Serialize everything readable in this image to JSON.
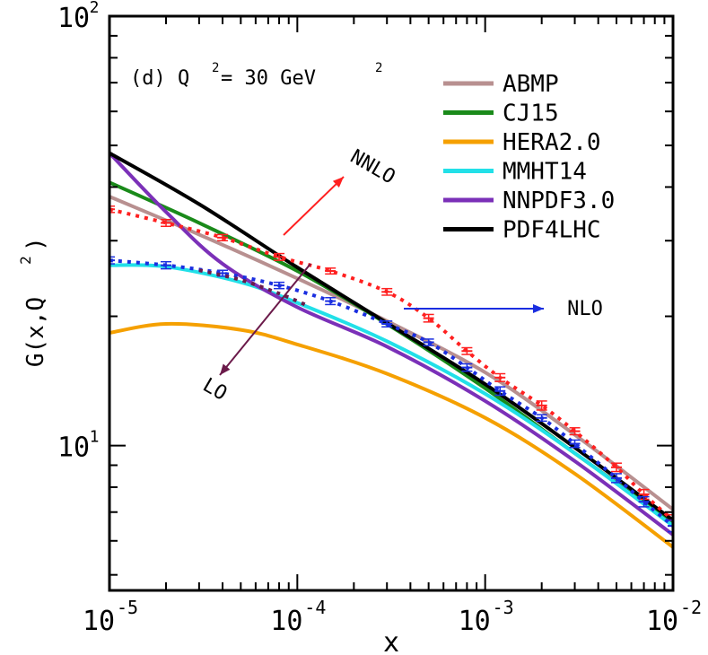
{
  "chart_data": {
    "type": "line",
    "title": "",
    "panel_label": "(d) Q",
    "panel_label_sup": "2",
    "panel_label_rest": " = 30 GeV",
    "panel_label_sup2": "2",
    "xlabel": "x",
    "ylabel_main": "G(x,Q",
    "ylabel_sup": "2",
    "ylabel_end": ")",
    "x_scale": "log",
    "y_scale": "log",
    "xlim": [
      1e-05,
      0.01
    ],
    "ylim": [
      4.6,
      100
    ],
    "x_ticks": [
      {
        "base": "10",
        "exp": "-5"
      },
      {
        "base": "10",
        "exp": "-4"
      },
      {
        "base": "10",
        "exp": "-3"
      },
      {
        "base": "10",
        "exp": "-2"
      }
    ],
    "y_ticks": [
      {
        "base": "10",
        "exp": "1"
      },
      {
        "base": "10",
        "exp": "2"
      }
    ],
    "legend_position": "top-right",
    "series": [
      {
        "name": "ABMP",
        "color": "#b89090",
        "x": [
          1e-05,
          3e-05,
          0.0001,
          0.0003,
          0.001,
          0.003,
          0.01
        ],
        "y": [
          38,
          31,
          24.5,
          19.5,
          14.8,
          10.6,
          7.1
        ]
      },
      {
        "name": "CJ15",
        "color": "#1a8a1a",
        "x": [
          1e-05,
          3e-05,
          0.0001,
          0.0003,
          0.001,
          0.003,
          0.01
        ],
        "y": [
          41,
          33,
          25.5,
          19.2,
          13.6,
          9.6,
          6.6
        ]
      },
      {
        "name": "HERA2.0",
        "color": "#f5a000",
        "x": [
          1e-05,
          2e-05,
          5e-05,
          0.0001,
          0.0003,
          0.001,
          0.003,
          0.01
        ],
        "y": [
          18.3,
          19.2,
          18.6,
          17.2,
          14.7,
          11.6,
          8.6,
          5.8
        ]
      },
      {
        "name": "MMHT14",
        "color": "#22e0e8",
        "x": [
          1e-05,
          2e-05,
          5e-05,
          0.0001,
          0.0003,
          0.001,
          0.003,
          0.01
        ],
        "y": [
          26.3,
          26.1,
          24,
          21.5,
          17.5,
          13.2,
          9.6,
          6.5
        ]
      },
      {
        "name": "NNPDF3.0",
        "color": "#7b30b8",
        "x": [
          1e-05,
          2e-05,
          4e-05,
          0.0001,
          0.0003,
          0.001,
          0.003,
          0.01
        ],
        "y": [
          48,
          35,
          26.5,
          21,
          17,
          12.7,
          9.2,
          6.2
        ]
      },
      {
        "name": "PDF4LHC",
        "color": "#000000",
        "x": [
          1e-05,
          3e-05,
          0.0001,
          0.0003,
          0.001,
          0.003,
          0.01
        ],
        "y": [
          48,
          36.5,
          26,
          19.3,
          13.9,
          9.9,
          6.7
        ]
      }
    ],
    "error_series": [
      {
        "name": "NNLO",
        "color": "#ff2020",
        "x": [
          1e-05,
          2e-05,
          4e-05,
          8e-05,
          0.00015,
          0.0003,
          0.0005,
          0.0008,
          0.0012,
          0.002,
          0.003,
          0.005,
          0.007,
          0.01
        ],
        "y": [
          35.5,
          33,
          30.5,
          27.5,
          25.5,
          22.8,
          19.8,
          16.6,
          14.4,
          12.4,
          10.8,
          8.9,
          7.7,
          6.7
        ],
        "err": [
          0.6,
          0.6,
          0.5,
          0.5,
          0.4,
          0.4,
          0.4,
          0.3,
          0.3,
          0.3,
          0.2,
          0.2,
          0.2,
          0.2
        ]
      },
      {
        "name": "NLO",
        "color": "#1a2ee0",
        "x": [
          1e-05,
          2e-05,
          4e-05,
          8e-05,
          0.00015,
          0.0003,
          0.0005,
          0.0008,
          0.0012,
          0.002,
          0.003,
          0.005,
          0.007,
          0.01
        ],
        "y": [
          27,
          26.3,
          25.2,
          23.6,
          21.7,
          19.2,
          17.4,
          15.2,
          13.4,
          11.6,
          10.1,
          8.4,
          7.4,
          6.5
        ],
        "err": [
          0.5,
          0.5,
          0.4,
          0.4,
          0.4,
          0.3,
          0.3,
          0.3,
          0.3,
          0.2,
          0.2,
          0.2,
          0.2,
          0.2
        ]
      },
      {
        "name": "LO",
        "color": "#6b1a4a",
        "x": [
          3e-05,
          5e-05,
          8e-05,
          0.00011
        ],
        "y": [
          25.6,
          24.3,
          22.6,
          21.3
        ],
        "err": [
          0,
          0,
          0,
          0
        ]
      }
    ],
    "annotations": [
      {
        "text": "NNLO",
        "color": "#ff2020"
      },
      {
        "text": "NLO",
        "color": "#1a2ee0"
      },
      {
        "text": "LO",
        "color": "#6b1a4a"
      }
    ]
  }
}
